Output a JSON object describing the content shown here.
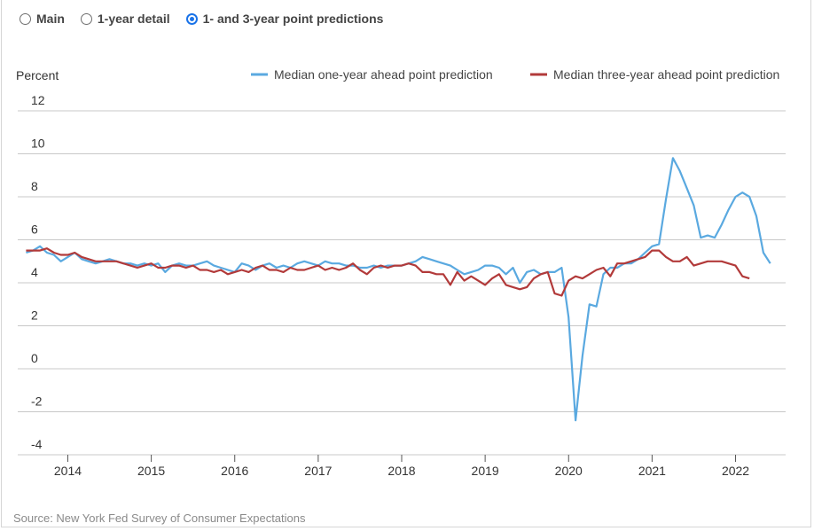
{
  "controls": {
    "options": [
      {
        "label": "Main",
        "checked": false
      },
      {
        "label": "1-year detail",
        "checked": false
      },
      {
        "label": "1- and 3-year point predictions",
        "checked": true
      }
    ]
  },
  "source": "Source: New York Fed Survey of Consumer Expectations",
  "colors": {
    "one_year": "#5aa9e0",
    "three_year": "#b23a3a",
    "grid": "#c8c8c8"
  },
  "chart_data": {
    "type": "line",
    "title": "",
    "ylabel": "Percent",
    "xlabel": "",
    "ylim": [
      -4,
      12
    ],
    "yticks": [
      12,
      10,
      8,
      6,
      4,
      2,
      0,
      -2,
      -4
    ],
    "xlim": [
      2013.4,
      2022.6
    ],
    "xticks": [
      "2014",
      "2015",
      "2016",
      "2017",
      "2018",
      "2019",
      "2020",
      "2021",
      "2022"
    ],
    "legend_position": "top-right",
    "grid": true,
    "series": [
      {
        "name": "Median one-year ahead point prediction",
        "x_start": 2013.5,
        "x_step": 0.08333,
        "values": [
          5.4,
          5.5,
          5.7,
          5.4,
          5.3,
          5.0,
          5.2,
          5.4,
          5.1,
          5.0,
          4.9,
          5.0,
          5.1,
          5.0,
          4.9,
          4.9,
          4.8,
          4.9,
          4.8,
          4.9,
          4.5,
          4.8,
          4.9,
          4.8,
          4.8,
          4.9,
          5.0,
          4.8,
          4.7,
          4.6,
          4.5,
          4.9,
          4.8,
          4.6,
          4.8,
          4.9,
          4.7,
          4.8,
          4.7,
          4.9,
          5.0,
          4.9,
          4.8,
          5.0,
          4.9,
          4.9,
          4.8,
          4.8,
          4.7,
          4.7,
          4.8,
          4.7,
          4.8,
          4.8,
          4.8,
          4.9,
          5.0,
          5.2,
          5.1,
          5.0,
          4.9,
          4.8,
          4.6,
          4.4,
          4.5,
          4.6,
          4.8,
          4.8,
          4.7,
          4.4,
          4.7,
          4.0,
          4.5,
          4.6,
          4.4,
          4.5,
          4.5,
          4.7,
          2.4,
          -2.4,
          0.6,
          3.0,
          2.9,
          4.4,
          4.7,
          4.7,
          4.9,
          4.9,
          5.1,
          5.4,
          5.7,
          5.8,
          7.9,
          9.8,
          9.2,
          8.4,
          7.6,
          6.1,
          6.2,
          6.1,
          6.7,
          7.4,
          8.0,
          8.2,
          8.0,
          7.1,
          5.4,
          4.9
        ]
      },
      {
        "name": "Median three-year ahead point prediction",
        "x_start": 2013.5,
        "x_step": 0.08333,
        "values": [
          5.5,
          5.5,
          5.5,
          5.6,
          5.4,
          5.3,
          5.3,
          5.4,
          5.2,
          5.1,
          5.0,
          5.0,
          5.0,
          5.0,
          4.9,
          4.8,
          4.7,
          4.8,
          4.9,
          4.7,
          4.7,
          4.8,
          4.8,
          4.7,
          4.8,
          4.6,
          4.6,
          4.5,
          4.6,
          4.4,
          4.5,
          4.6,
          4.5,
          4.7,
          4.8,
          4.6,
          4.6,
          4.5,
          4.7,
          4.6,
          4.6,
          4.7,
          4.8,
          4.6,
          4.7,
          4.6,
          4.7,
          4.9,
          4.6,
          4.4,
          4.7,
          4.8,
          4.7,
          4.8,
          4.8,
          4.9,
          4.8,
          4.5,
          4.5,
          4.4,
          4.4,
          3.9,
          4.5,
          4.1,
          4.3,
          4.1,
          3.9,
          4.2,
          4.4,
          3.9,
          3.8,
          3.7,
          3.8,
          4.2,
          4.4,
          4.5,
          3.5,
          3.4,
          4.1,
          4.3,
          4.2,
          4.4,
          4.6,
          4.7,
          4.3,
          4.9,
          4.9,
          5.0,
          5.1,
          5.2,
          5.5,
          5.5,
          5.2,
          5.0,
          5.0,
          5.2,
          4.8,
          4.9,
          5.0,
          5.0,
          5.0,
          4.9,
          4.8,
          4.3,
          4.2
        ]
      }
    ]
  }
}
